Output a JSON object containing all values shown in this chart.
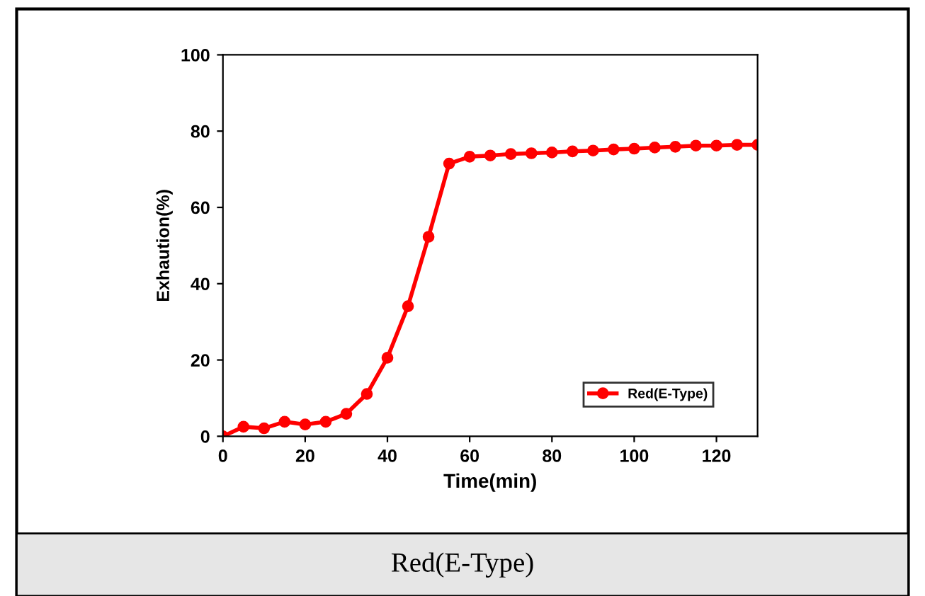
{
  "chart_data": {
    "type": "line",
    "xlabel": "Time(min)",
    "ylabel": "Exhaution(%)",
    "x": [
      0,
      5,
      10,
      15,
      20,
      25,
      30,
      35,
      40,
      45,
      50,
      55,
      60,
      65,
      70,
      75,
      80,
      85,
      90,
      95,
      100,
      105,
      110,
      115,
      120,
      125,
      130
    ],
    "series": [
      {
        "name": "Red(E-Type)",
        "color": "#ff0000",
        "values": [
          0,
          2.5,
          2.1,
          3.8,
          3.1,
          3.8,
          5.9,
          11.1,
          20.6,
          34.1,
          52.3,
          71.5,
          73.3,
          73.6,
          74.0,
          74.2,
          74.4,
          74.7,
          74.9,
          75.2,
          75.4,
          75.7,
          75.9,
          76.2,
          76.2,
          76.4,
          76.4
        ]
      }
    ],
    "xlim": [
      0,
      130
    ],
    "xticks": [
      0,
      20,
      40,
      60,
      80,
      100,
      120
    ],
    "ylim": [
      0,
      100
    ],
    "yticks": [
      0,
      20,
      40,
      60,
      80,
      100
    ],
    "marker": "circle",
    "line_style": "solid",
    "legend": "bottom right",
    "grid": false,
    "annotations": [
      "Red(E-Type)"
    ]
  }
}
